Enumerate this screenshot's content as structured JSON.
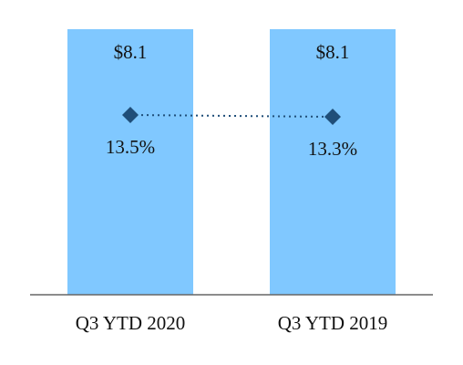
{
  "chart_data": {
    "type": "bar",
    "categories": [
      "Q3 YTD 2020",
      "Q3 YTD 2019"
    ],
    "series": [
      {
        "type": "bar",
        "color": "#80c8ff",
        "values": [
          8.1,
          8.1
        ],
        "value_labels": [
          "$8.1",
          "$8.1"
        ]
      },
      {
        "type": "line",
        "color": "#1f4e79",
        "values": [
          13.5,
          13.3
        ],
        "value_labels": [
          "13.5%",
          "13.3%"
        ]
      }
    ]
  }
}
